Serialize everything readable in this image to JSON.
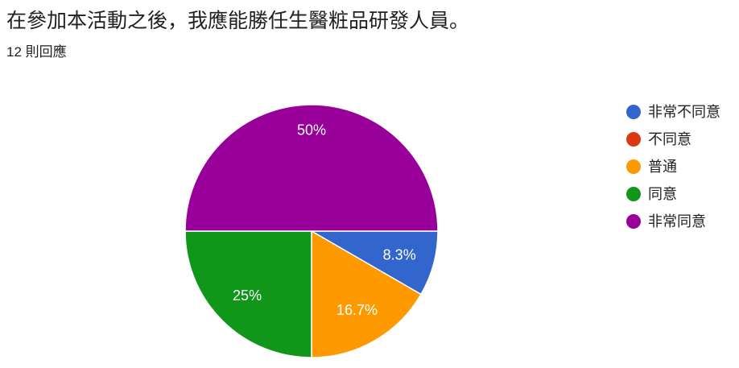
{
  "header": {
    "title": "在參加本活動之後，我應能勝任生醫粧品研發人員。",
    "response_count": "12 則回應"
  },
  "chart_data": {
    "type": "pie",
    "title": "在參加本活動之後，我應能勝任生醫粧品研發人員。",
    "categories": [
      "非常不同意",
      "不同意",
      "普通",
      "同意",
      "非常同意"
    ],
    "values": [
      1,
      0,
      2,
      3,
      6
    ],
    "percent_labels": [
      "8.3%",
      "",
      "16.7%",
      "25%",
      "50%"
    ],
    "colors": [
      "#3366cc",
      "#dc3912",
      "#ff9900",
      "#109618",
      "#990099"
    ],
    "legend_position": "right"
  }
}
